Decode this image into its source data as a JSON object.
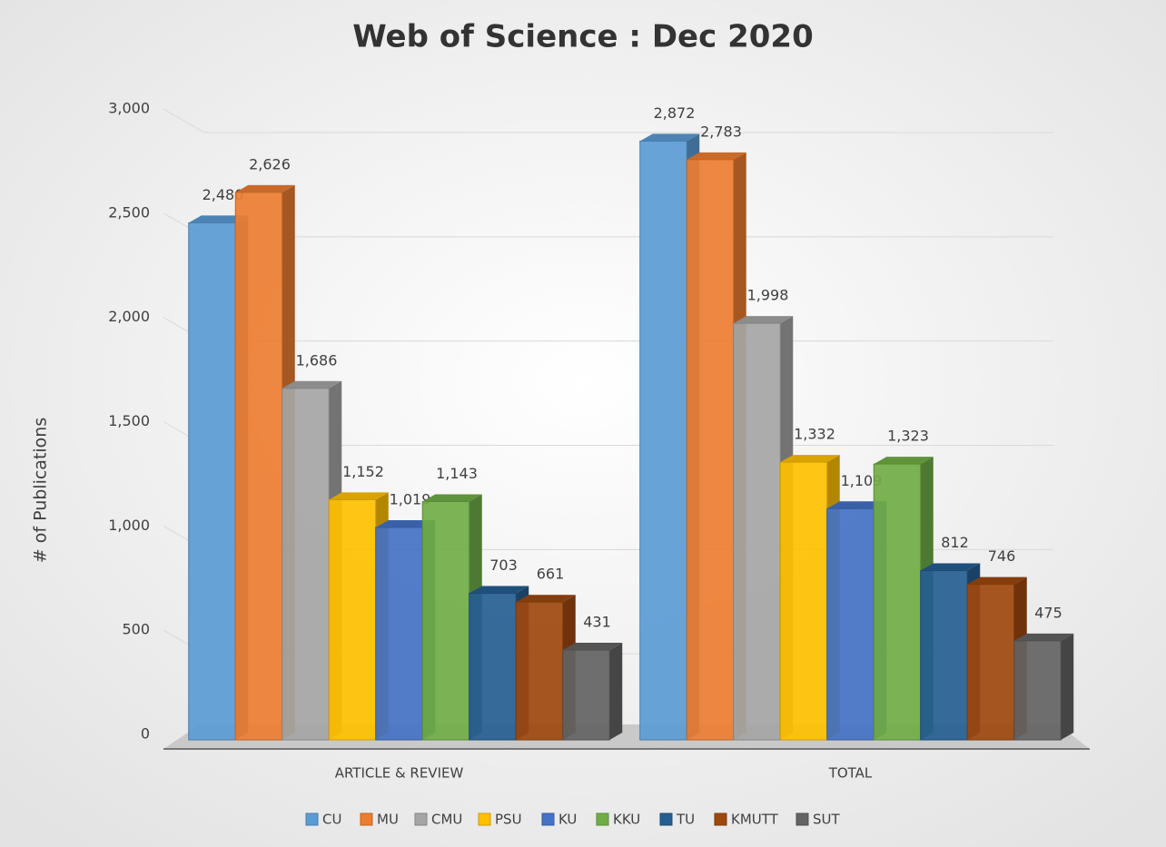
{
  "chart_data": {
    "type": "bar3d",
    "title": "Web of Science : Dec 2020",
    "y_label": "# of Publications",
    "categories": [
      "ARTICLE & REVIEW",
      "TOTAL"
    ],
    "ylim": [
      0,
      3000
    ],
    "yticks": [
      0,
      500,
      {
        "value": 1000,
        "label": "1,000"
      },
      {
        "value": 1500,
        "label": "1,500"
      },
      {
        "value": 2000,
        "label": "2,000"
      },
      {
        "value": 2500,
        "label": "2,500"
      },
      {
        "value": 3000,
        "label": "3,000"
      }
    ],
    "grid": true,
    "legend": "bottom",
    "series": [
      {
        "name": "CU",
        "color": "#5b9bd5",
        "values": [
          2480,
          2872
        ],
        "value_labels": [
          "2,480",
          "2,872"
        ]
      },
      {
        "name": "MU",
        "color": "#ed7d31",
        "values": [
          2626,
          2783
        ],
        "value_labels": [
          "2,626",
          "2,783"
        ]
      },
      {
        "name": "CMU",
        "color": "#a5a5a5",
        "values": [
          1686,
          1998
        ],
        "value_labels": [
          "1,686",
          "1,998"
        ]
      },
      {
        "name": "PSU",
        "color": "#ffc000",
        "values": [
          1152,
          1332
        ],
        "value_labels": [
          "1,152",
          "1,332"
        ]
      },
      {
        "name": "KU",
        "color": "#4472c4",
        "values": [
          1019,
          1109
        ],
        "value_labels": [
          "1,019",
          "1,109"
        ]
      },
      {
        "name": "KKU",
        "color": "#70ad47",
        "values": [
          1143,
          1323
        ],
        "value_labels": [
          "1,143",
          "1,323"
        ]
      },
      {
        "name": "TU",
        "color": "#255e91",
        "values": [
          703,
          812
        ],
        "value_labels": [
          "703",
          "812"
        ]
      },
      {
        "name": "KMUTT",
        "color": "#9e480e",
        "values": [
          661,
          746
        ],
        "value_labels": [
          "661",
          "746"
        ]
      },
      {
        "name": "SUT",
        "color": "#636363",
        "values": [
          431,
          475
        ],
        "value_labels": [
          "431",
          "475"
        ]
      }
    ]
  }
}
